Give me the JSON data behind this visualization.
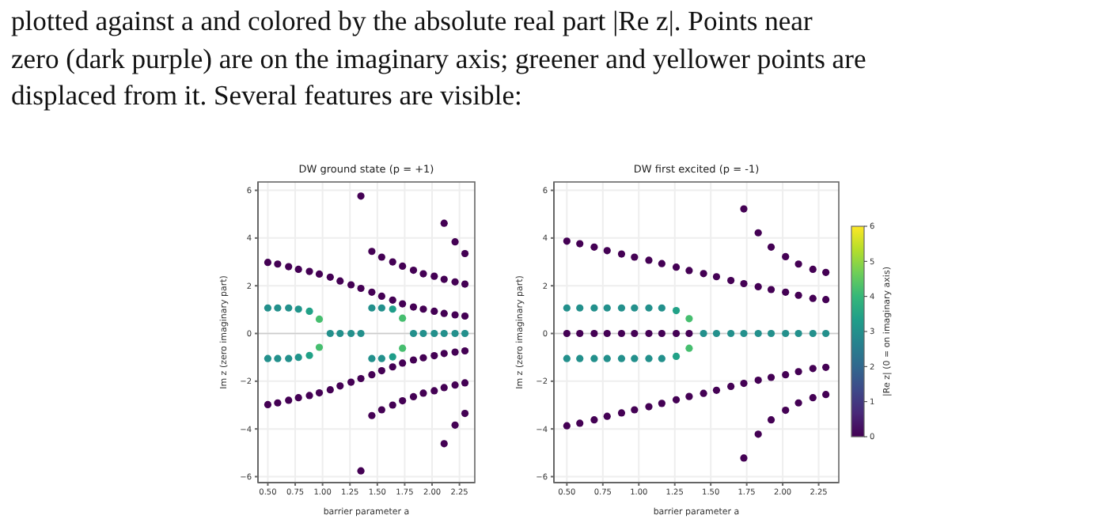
{
  "chart_data": [
    {
      "type": "scatter",
      "title": "DW ground state (p = +1)",
      "xlabel": "barrier parameter a",
      "ylabel": "Im z  (zero imaginary part)",
      "annotations": [
        "plotted against a and colored by the absolute real part |Re z|.  Points near",
        "zero (dark purple) are on the imaginary axis; greener and yellower points are",
        "displaced from it. Several features are visible:"
      ],
      "xlim": [
        0.41,
        2.39
      ],
      "ylim": [
        -6.25,
        6.35
      ],
      "xticks": [
        {
          "value": 0.5,
          "label": "0.50"
        },
        0.75,
        {
          "value": 1,
          "label": "1.00"
        },
        1.25,
        {
          "value": 1.5,
          "label": "1.50"
        },
        1.75,
        {
          "value": 2,
          "label": "2.00"
        },
        2.25
      ],
      "yticks": [
        -6,
        -4,
        -2,
        0,
        2,
        4,
        6
      ],
      "grid": true,
      "marker": "circle",
      "ref_lines": [
        {
          "axis": "y",
          "value": 0,
          "color": "#cccccc"
        }
      ],
      "series": [
        {
          "color": "#440154",
          "x": [
            0.5,
            0.59,
            0.69,
            0.78,
            0.88,
            0.97,
            1.07,
            1.16,
            1.26,
            1.35,
            1.45,
            1.54,
            1.64,
            1.73,
            1.83,
            1.92,
            2.02,
            2.11,
            2.21,
            2.3
          ],
          "values": [
            2.98,
            2.91,
            2.8,
            2.69,
            2.6,
            2.49,
            2.36,
            2.2,
            2.04,
            1.89,
            1.73,
            1.56,
            1.4,
            1.24,
            1.11,
            1.02,
            0.93,
            0.84,
            0.78,
            0.73
          ]
        },
        {
          "color": "#440154",
          "x": [
            0.5,
            0.59,
            0.69,
            0.78,
            0.88,
            0.97,
            1.07,
            1.16,
            1.26,
            1.35,
            1.45,
            1.54,
            1.64,
            1.73,
            1.83,
            1.92,
            2.02,
            2.11,
            2.21,
            2.3
          ],
          "values": [
            -2.98,
            -2.91,
            -2.8,
            -2.69,
            -2.6,
            -2.49,
            -2.36,
            -2.2,
            -2.04,
            -1.89,
            -1.73,
            -1.56,
            -1.4,
            -1.24,
            -1.11,
            -1.02,
            -0.93,
            -0.84,
            -0.78,
            -0.73
          ]
        },
        {
          "color": "#23908c",
          "x": [
            0.5,
            0.59,
            0.69,
            1.45,
            1.54,
            0.5,
            0.59,
            0.69,
            1.45,
            1.54,
            1.07,
            1.16,
            1.26,
            1.35,
            1.83,
            1.92,
            2.02,
            2.11,
            2.21,
            2.3
          ],
          "values": [
            1.07,
            1.07,
            1.07,
            1.07,
            1.07,
            -1.05,
            -1.05,
            -1.05,
            -1.05,
            -1.05,
            0,
            0,
            0,
            0,
            0,
            0,
            0,
            0,
            0,
            0
          ]
        },
        {
          "color": "#21948b",
          "x": [
            0.78,
            0.78
          ],
          "values": [
            1.02,
            -1
          ]
        },
        {
          "color": "#21a187",
          "x": [
            0.88,
            0.88
          ],
          "values": [
            0.93,
            -0.92
          ]
        },
        {
          "color": "#1f9d89",
          "x": [
            1.64,
            1.64
          ],
          "values": [
            1.02,
            -0.98
          ]
        },
        {
          "color": "#46be6f",
          "x": [
            0.97,
            0.97,
            1.73,
            1.73
          ],
          "values": [
            0.6,
            -0.58,
            0.64,
            -0.62
          ]
        },
        {
          "color": "#440154",
          "x": [
            1.35,
            1.45,
            1.54,
            1.64,
            1.73,
            1.83,
            1.92,
            2.02,
            2.11,
            2.21,
            2.3,
            2.11,
            2.21,
            2.3
          ],
          "values": [
            5.76,
            3.44,
            3.2,
            3,
            2.82,
            2.65,
            2.5,
            2.4,
            2.27,
            2.16,
            2.07,
            4.62,
            3.84,
            3.35
          ]
        },
        {
          "color": "#440154",
          "x": [
            1.35,
            1.45,
            1.54,
            1.64,
            1.73,
            1.83,
            1.92,
            2.02,
            2.11,
            2.21,
            2.3,
            2.11,
            2.21,
            2.3
          ],
          "values": [
            -5.76,
            -3.44,
            -3.2,
            -3,
            -2.82,
            -2.65,
            -2.5,
            -2.4,
            -2.27,
            -2.16,
            -2.07,
            -4.62,
            -3.84,
            -3.35
          ]
        }
      ]
    },
    {
      "type": "scatter",
      "title": "DW first excited (p = -1)",
      "xlabel": "barrier parameter a",
      "ylabel": "Im z  (zero imaginary part)",
      "clabel": "|Re z|  (0 = on imaginary axis)",
      "xlim": [
        0.41,
        2.39
      ],
      "ylim": [
        -6.25,
        6.35
      ],
      "xticks": [
        {
          "value": 0.5,
          "label": "0.50"
        },
        0.75,
        {
          "value": 1,
          "label": "1.00"
        },
        1.25,
        {
          "value": 1.5,
          "label": "1.50"
        },
        1.75,
        {
          "value": 2,
          "label": "2.00"
        },
        2.25
      ],
      "yticks": [
        -6,
        -4,
        -2,
        0,
        2,
        4,
        6
      ],
      "grid": true,
      "marker": "circle",
      "clim": [
        0,
        6
      ],
      "cticks": [
        0,
        1,
        2,
        3,
        4,
        5,
        6
      ],
      "ref_lines": [
        {
          "axis": "y",
          "value": 0,
          "color": "#cccccc"
        }
      ],
      "series": [
        {
          "x": [
            0.5,
            0.59,
            0.69,
            0.78,
            0.88,
            0.97,
            1.07,
            1.16,
            1.26,
            1.35,
            1.45,
            1.54,
            1.64,
            1.73,
            1.83,
            1.92,
            2.02,
            2.11,
            2.21,
            2.3
          ],
          "values": [
            3.87,
            3.76,
            3.62,
            3.47,
            3.33,
            3.2,
            3.07,
            2.93,
            2.78,
            2.64,
            2.51,
            2.38,
            2.22,
            2.09,
            1.96,
            1.84,
            1.73,
            1.6,
            1.47,
            1.42
          ],
          "cvalues": [
            0,
            0,
            0,
            0,
            0,
            0,
            0,
            0,
            0,
            0,
            0,
            0,
            0,
            0,
            0,
            0,
            0,
            0,
            0,
            0
          ]
        },
        {
          "x": [
            0.5,
            0.59,
            0.69,
            0.78,
            0.88,
            0.97,
            1.07,
            1.16,
            1.26,
            1.35,
            1.45,
            1.54,
            1.64,
            1.73,
            1.83,
            1.92,
            2.02,
            2.11,
            2.21,
            2.3
          ],
          "values": [
            -3.87,
            -3.76,
            -3.62,
            -3.47,
            -3.33,
            -3.2,
            -3.07,
            -2.93,
            -2.78,
            -2.64,
            -2.51,
            -2.38,
            -2.22,
            -2.09,
            -1.96,
            -1.84,
            -1.73,
            -1.6,
            -1.47,
            -1.42
          ],
          "cvalues": [
            0,
            0,
            0,
            0,
            0,
            0,
            0,
            0,
            0,
            0,
            0,
            0,
            0,
            0,
            0,
            0,
            0,
            0,
            0,
            0
          ]
        },
        {
          "x": [
            1.73,
            1.83,
            1.92,
            2.02,
            2.11,
            2.21,
            2.3
          ],
          "values": [
            5.22,
            4.22,
            3.62,
            3.22,
            2.91,
            2.69,
            2.56
          ],
          "cvalues": [
            0,
            0,
            0,
            0,
            0,
            0,
            0
          ]
        },
        {
          "x": [
            1.73,
            1.83,
            1.92,
            2.02,
            2.11,
            2.21,
            2.3
          ],
          "values": [
            -5.22,
            -4.22,
            -3.62,
            -3.22,
            -2.91,
            -2.69,
            -2.56
          ],
          "cvalues": [
            0,
            0,
            0,
            0,
            0,
            0,
            0
          ]
        },
        {
          "x": [
            0.5,
            0.59,
            0.69,
            0.78,
            0.88,
            0.97,
            1.07,
            1.16,
            1.26,
            1.35
          ],
          "values": [
            0,
            0,
            0,
            0,
            0,
            0,
            0,
            0,
            0,
            0
          ],
          "cvalues": [
            0,
            0,
            0,
            0,
            0,
            0,
            0,
            0,
            0,
            0
          ]
        },
        {
          "x": [
            0.5,
            0.59,
            0.69,
            0.78,
            0.88,
            0.97,
            1.07,
            1.16,
            0.5,
            0.59,
            0.69,
            0.78,
            0.88,
            0.97,
            1.07,
            1.16,
            1.45,
            1.54,
            1.64,
            1.73,
            1.83,
            1.92,
            2.02,
            2.11,
            2.21,
            2.3
          ],
          "values": [
            1.07,
            1.07,
            1.07,
            1.07,
            1.07,
            1.07,
            1.07,
            1.07,
            -1.05,
            -1.05,
            -1.05,
            -1.05,
            -1.05,
            -1.05,
            -1.05,
            -1.05,
            0,
            0,
            0,
            0,
            0,
            0,
            0,
            0,
            0,
            0
          ],
          "cvalues": [
            3,
            3,
            3,
            3,
            3,
            3,
            3,
            3,
            3,
            3,
            3,
            3,
            3,
            3,
            3,
            3,
            3,
            3,
            3,
            3,
            3,
            3,
            3,
            3,
            3,
            3
          ]
        },
        {
          "x": [
            1.26,
            1.26
          ],
          "values": [
            0.96,
            -0.96
          ],
          "cvalues": [
            3.4,
            3.4
          ]
        },
        {
          "x": [
            1.35,
            1.35
          ],
          "values": [
            0.62,
            -0.62
          ],
          "cvalues": [
            4.2,
            4.2
          ]
        }
      ]
    }
  ]
}
